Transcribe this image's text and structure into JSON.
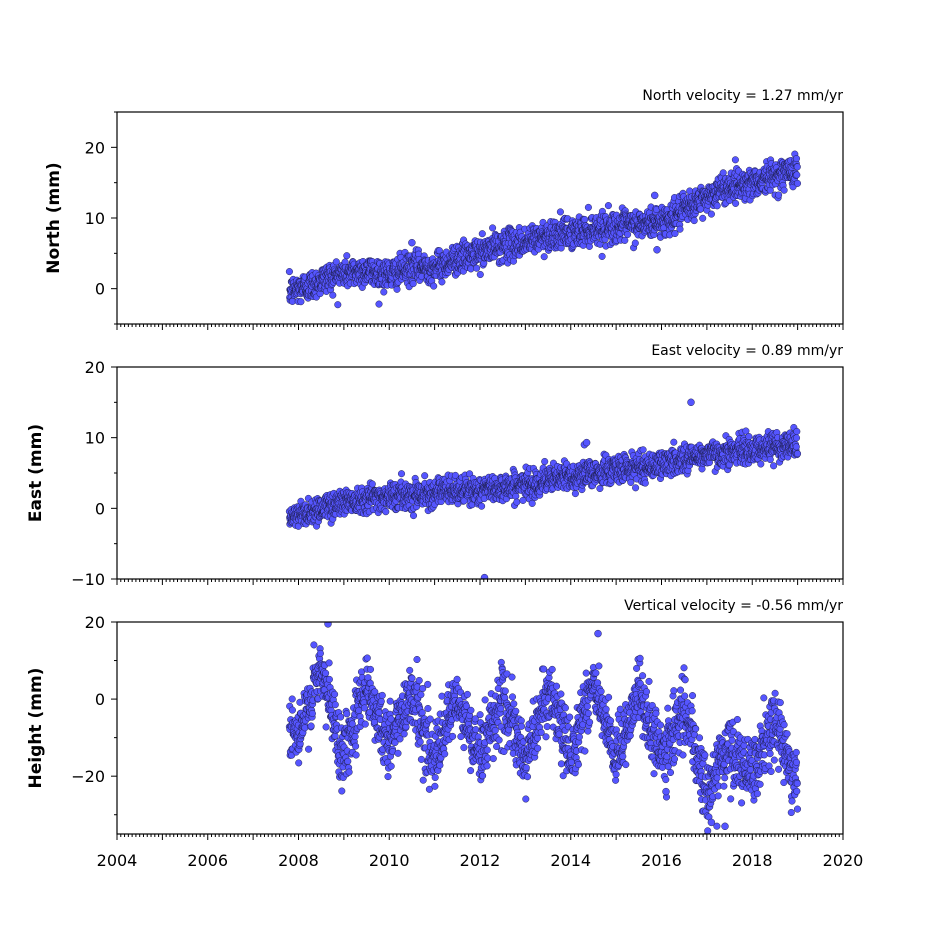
{
  "chart_data": [
    {
      "type": "scatter",
      "panel": "north",
      "title": "North velocity = 1.27 mm/yr",
      "ylabel": "North (mm)",
      "xlim": [
        2004,
        2020
      ],
      "ylim": [
        -5,
        25
      ],
      "yticks": [
        0,
        10,
        20
      ],
      "marker_color": "#5555ff",
      "trend": {
        "x_start": 2007.75,
        "y_start": 0.0,
        "slope": 1.27
      },
      "series": [
        {
          "x": [
            2007.8,
            2008.0,
            2008.3,
            2008.6,
            2009.0,
            2009.5,
            2010.0,
            2010.5,
            2011.0,
            2011.5,
            2012.0,
            2012.5,
            2013.0,
            2013.5,
            2014.0,
            2014.5,
            2015.0,
            2015.5,
            2016.0,
            2016.5,
            2017.0,
            2017.5,
            2018.0,
            2018.5,
            2019.0
          ],
          "y": [
            -0.5,
            0.0,
            0.5,
            1.5,
            2.2,
            2.5,
            2.0,
            3.0,
            3.0,
            4.2,
            5.0,
            6.2,
            6.5,
            7.6,
            7.8,
            8.5,
            8.8,
            9.0,
            9.5,
            11.0,
            13.0,
            14.5,
            15.0,
            16.0,
            17.0
          ]
        }
      ],
      "outliers": {
        "x": [
          2010.5,
          2015.85,
          2015.9
        ],
        "y": [
          6.5,
          13.2,
          5.5
        ]
      }
    },
    {
      "type": "scatter",
      "panel": "east",
      "title": "East velocity = 0.89 mm/yr",
      "ylabel": "East (mm)",
      "xlim": [
        2004,
        2020
      ],
      "ylim": [
        -10,
        20
      ],
      "yticks": [
        -10,
        0,
        10,
        20
      ],
      "marker_color": "#5555ff",
      "trend": {
        "x_start": 2007.75,
        "y_start": -1.3,
        "slope": 0.89
      },
      "series": [
        {
          "x": [
            2007.8,
            2008.0,
            2008.5,
            2009.0,
            2009.5,
            2010.0,
            2010.5,
            2011.0,
            2011.5,
            2012.0,
            2012.5,
            2013.0,
            2013.5,
            2014.0,
            2014.5,
            2015.0,
            2015.5,
            2016.0,
            2016.5,
            2017.0,
            2017.5,
            2018.0,
            2018.5,
            2019.0
          ],
          "y": [
            -1.5,
            -1.0,
            0.0,
            1.0,
            1.5,
            1.7,
            2.0,
            2.3,
            2.5,
            2.5,
            3.0,
            3.3,
            4.0,
            4.5,
            5.0,
            5.5,
            5.8,
            6.2,
            7.0,
            7.6,
            8.0,
            8.3,
            8.8,
            9.2
          ]
        }
      ],
      "outliers": {
        "x": [
          2012.1,
          2016.65,
          2014.3,
          2014.35
        ],
        "y": [
          -9.8,
          15.0,
          9.0,
          9.3
        ]
      }
    },
    {
      "type": "scatter",
      "panel": "height",
      "title": "Vertical velocity = -0.56 mm/yr",
      "ylabel": "Height (mm)",
      "xlabel": "",
      "xlim": [
        2004,
        2020
      ],
      "ylim": [
        -35,
        20
      ],
      "yticks": [
        -20,
        0,
        20
      ],
      "xticks": [
        2004,
        2006,
        2008,
        2010,
        2012,
        2014,
        2016,
        2018,
        2020
      ],
      "marker_color": "#5555ff",
      "trend": {
        "x_start": 2007.75,
        "y_start": -3.0,
        "slope": -0.56
      },
      "seasonal_amplitude_mm": 6,
      "series": [
        {
          "x": [
            2007.8,
            2008.0,
            2008.5,
            2009.0,
            2009.5,
            2010.0,
            2010.5,
            2011.0,
            2011.5,
            2012.0,
            2012.5,
            2013.0,
            2013.5,
            2014.0,
            2014.5,
            2015.0,
            2015.5,
            2016.0,
            2016.5,
            2017.0,
            2017.5,
            2018.0,
            2018.5,
            2019.0
          ],
          "y": [
            -5,
            -8,
            5,
            -12,
            2,
            -10,
            0,
            -14,
            -3,
            -12,
            -2,
            -14,
            0,
            -12,
            2,
            -14,
            0,
            -13,
            -5,
            -22,
            -15,
            -18,
            -8,
            -20
          ]
        }
      ],
      "outliers": {
        "x": [
          2008.65,
          2014.6,
          2017.1,
          2017.4,
          2016.1
        ],
        "y": [
          19.5,
          17.0,
          -32.0,
          -33.0,
          -24.0
        ]
      }
    }
  ]
}
